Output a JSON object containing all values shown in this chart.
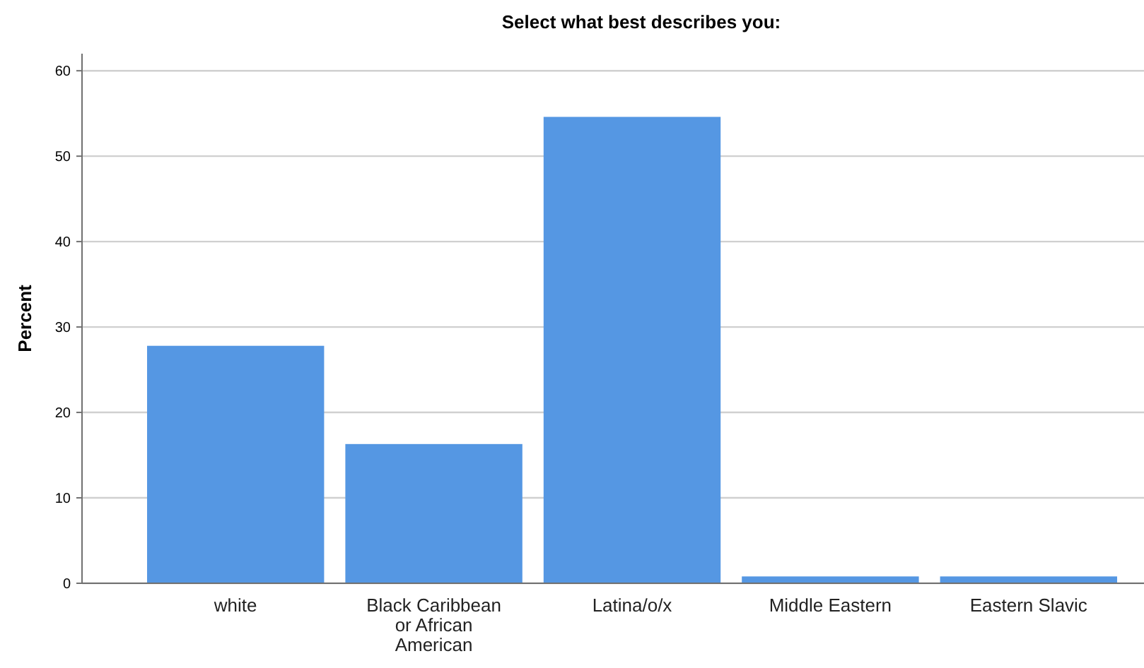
{
  "chart_data": {
    "type": "bar",
    "title": "Select what best describes you:",
    "ylabel": "Percent",
    "categories": [
      "white",
      "Black Caribbean or African American",
      "Latina/o/x",
      "Middle Eastern",
      "Eastern Slavic"
    ],
    "values": [
      27.8,
      16.3,
      54.6,
      0.8,
      0.8
    ],
    "color": "#5597e3",
    "ylim": [
      0,
      62
    ],
    "yticks": [
      0,
      10,
      20,
      30,
      40,
      50,
      60
    ],
    "grid": "y"
  }
}
